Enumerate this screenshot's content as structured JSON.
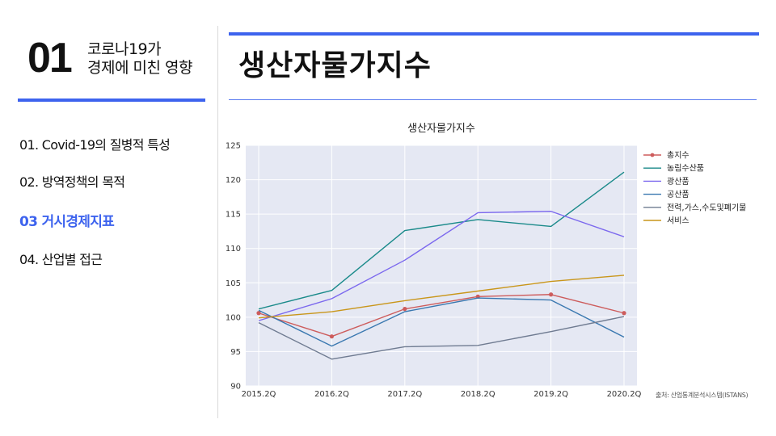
{
  "section": {
    "number": "01",
    "title_line1": "코로나19가",
    "title_line2": "경제에 미친 영향"
  },
  "nav": {
    "items": [
      {
        "label": "01. Covid-19의 질병적 특성",
        "active": false
      },
      {
        "label": "02. 방역정책의 목적",
        "active": false
      },
      {
        "label": "03 거시경제지표",
        "active": true
      },
      {
        "label": "04. 산업별 접근",
        "active": false
      }
    ]
  },
  "page": {
    "title": "생산자물가지수",
    "source_note": "출처: 산업통계분석시스템(ISTANS)"
  },
  "colors": {
    "accent": "#3d63ee",
    "plot_bg": "#e5e8f3",
    "grid": "#ffffff"
  },
  "chart_data": {
    "type": "line",
    "title": "생산자물가지수",
    "xlabel": "",
    "ylabel": "",
    "categories": [
      "2015.2Q",
      "2016.2Q",
      "2017.2Q",
      "2018.2Q",
      "2019.2Q",
      "2020.2Q"
    ],
    "ylim": [
      90,
      125
    ],
    "yticks": [
      90,
      95,
      100,
      105,
      110,
      115,
      120,
      125
    ],
    "grid": true,
    "legend_position": "right",
    "series": [
      {
        "name": "총지수",
        "color": "#cd5c5c",
        "markers": true,
        "values": [
          100.6,
          97.2,
          101.2,
          103.0,
          103.3,
          100.6
        ]
      },
      {
        "name": "농림수산품",
        "color": "#1a8a8a",
        "markers": false,
        "values": [
          101.2,
          103.9,
          112.6,
          114.2,
          113.2,
          121.1
        ]
      },
      {
        "name": "광산품",
        "color": "#7b68ee",
        "markers": false,
        "values": [
          99.5,
          102.7,
          108.3,
          115.2,
          115.4,
          111.7
        ]
      },
      {
        "name": "공산품",
        "color": "#3a78b0",
        "markers": false,
        "values": [
          101.0,
          95.8,
          100.8,
          102.8,
          102.5,
          97.1
        ]
      },
      {
        "name": "전력,가스,수도및폐기물",
        "color": "#6f7b91",
        "markers": false,
        "values": [
          99.2,
          93.9,
          95.7,
          95.9,
          97.9,
          100.1
        ]
      },
      {
        "name": "서비스",
        "color": "#c9961a",
        "markers": false,
        "values": [
          99.9,
          100.8,
          102.4,
          103.8,
          105.2,
          106.1
        ]
      }
    ]
  }
}
